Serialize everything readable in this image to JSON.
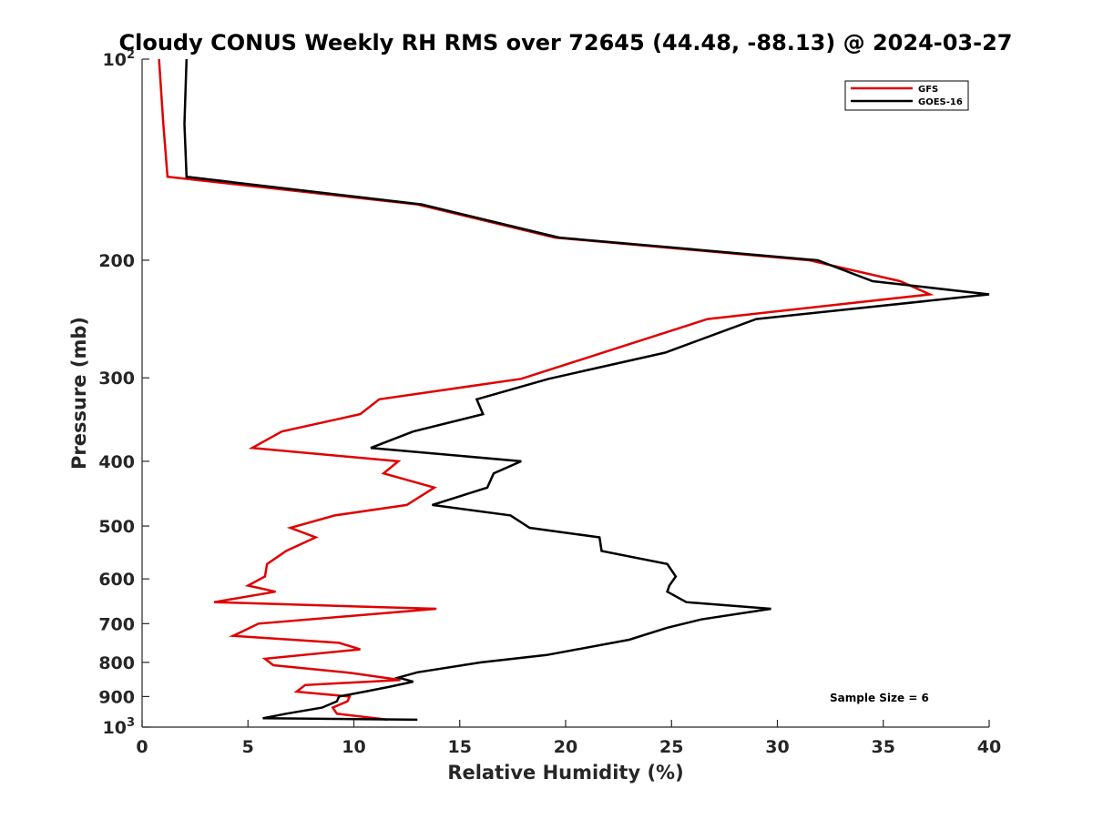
{
  "chart_data": {
    "type": "line",
    "title": "Cloudy CONUS Weekly RH RMS over 72645 (44.48, -88.13) @ 2024-03-27",
    "xlabel": "Relative Humidity (%)",
    "ylabel": "Pressure (mb)",
    "xlim": [
      0,
      40
    ],
    "ylim": [
      100,
      1000
    ],
    "y_scale": "log",
    "y_reversed": true,
    "grid": false,
    "legend_position": "top-right",
    "x_ticks": [
      0,
      5,
      10,
      15,
      20,
      25,
      30,
      35,
      40
    ],
    "x_tick_labels": [
      "0",
      "5",
      "10",
      "15",
      "20",
      "25",
      "30",
      "35",
      "40"
    ],
    "y_ticks": [
      100,
      200,
      300,
      400,
      500,
      600,
      700,
      800,
      900,
      1000
    ],
    "y_tick_labels": [
      {
        "base": "10",
        "sup": "2"
      },
      {
        "base": "200",
        "sup": ""
      },
      {
        "base": "300",
        "sup": ""
      },
      {
        "base": "400",
        "sup": ""
      },
      {
        "base": "500",
        "sup": ""
      },
      {
        "base": "600",
        "sup": ""
      },
      {
        "base": "700",
        "sup": ""
      },
      {
        "base": "800",
        "sup": ""
      },
      {
        "base": "900",
        "sup": ""
      },
      {
        "base": "10",
        "sup": "3"
      }
    ],
    "annotation": "Sample Size = 6",
    "series": [
      {
        "name": "GFS",
        "color": "#e00000",
        "points": [
          [
            0.8,
            100
          ],
          [
            1.0,
            125
          ],
          [
            1.2,
            150
          ],
          [
            13.0,
            165
          ],
          [
            19.5,
            185
          ],
          [
            31.5,
            200
          ],
          [
            35.8,
            215
          ],
          [
            37.2,
            225
          ],
          [
            26.7,
            245
          ],
          [
            17.9,
            301
          ],
          [
            11.2,
            323
          ],
          [
            10.3,
            340
          ],
          [
            6.6,
            361
          ],
          [
            5.2,
            382
          ],
          [
            12.1,
            400
          ],
          [
            11.4,
            417
          ],
          [
            13.8,
            438
          ],
          [
            12.5,
            465
          ],
          [
            9.1,
            482
          ],
          [
            7.0,
            503
          ],
          [
            8.2,
            520
          ],
          [
            6.8,
            545
          ],
          [
            5.9,
            570
          ],
          [
            5.8,
            595
          ],
          [
            5.0,
            614
          ],
          [
            6.3,
            627
          ],
          [
            3.4,
            650
          ],
          [
            13.9,
            665
          ],
          [
            5.5,
            700
          ],
          [
            4.3,
            730
          ],
          [
            9.3,
            748
          ],
          [
            10.3,
            765
          ],
          [
            5.8,
            790
          ],
          [
            6.2,
            808
          ],
          [
            9.9,
            830
          ],
          [
            12.2,
            850
          ],
          [
            7.7,
            865
          ],
          [
            7.3,
            885
          ],
          [
            9.8,
            900
          ],
          [
            9.7,
            915
          ],
          [
            9.0,
            935
          ],
          [
            9.2,
            955
          ],
          [
            11.6,
            975
          ]
        ]
      },
      {
        "name": "GOES-16",
        "color": "#000000",
        "points": [
          [
            2.1,
            100
          ],
          [
            2.0,
            125
          ],
          [
            2.1,
            150
          ],
          [
            13.2,
            165
          ],
          [
            19.7,
            185
          ],
          [
            31.9,
            200
          ],
          [
            34.5,
            215
          ],
          [
            40.0,
            225
          ],
          [
            29.0,
            245
          ],
          [
            24.7,
            275
          ],
          [
            19.2,
            301
          ],
          [
            15.8,
            323
          ],
          [
            16.1,
            340
          ],
          [
            12.8,
            361
          ],
          [
            10.8,
            382
          ],
          [
            17.9,
            400
          ],
          [
            16.6,
            417
          ],
          [
            16.3,
            438
          ],
          [
            13.7,
            465
          ],
          [
            17.4,
            482
          ],
          [
            18.3,
            503
          ],
          [
            21.6,
            520
          ],
          [
            21.7,
            545
          ],
          [
            24.8,
            570
          ],
          [
            25.2,
            595
          ],
          [
            24.9,
            614
          ],
          [
            24.8,
            627
          ],
          [
            25.7,
            650
          ],
          [
            29.7,
            665
          ],
          [
            26.4,
            690
          ],
          [
            24.8,
            710
          ],
          [
            23.0,
            740
          ],
          [
            19.1,
            780
          ],
          [
            16.0,
            800
          ],
          [
            13.0,
            828
          ],
          [
            12.1,
            843
          ],
          [
            12.8,
            855
          ],
          [
            11.7,
            870
          ],
          [
            10.5,
            885
          ],
          [
            9.3,
            900
          ],
          [
            9.2,
            915
          ],
          [
            8.5,
            935
          ],
          [
            6.8,
            955
          ],
          [
            5.7,
            970
          ],
          [
            13.0,
            975
          ]
        ]
      }
    ]
  }
}
